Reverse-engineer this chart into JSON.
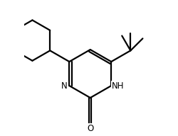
{
  "background_color": "#ffffff",
  "line_color": "#000000",
  "line_width": 1.6,
  "figsize": [
    2.5,
    1.92
  ],
  "dpi": 100,
  "labels": {
    "N": {
      "text": "N",
      "fontsize": 8.5
    },
    "NH": {
      "text": "NH",
      "fontsize": 8.5
    },
    "O": {
      "text": "O",
      "fontsize": 8.5
    }
  }
}
